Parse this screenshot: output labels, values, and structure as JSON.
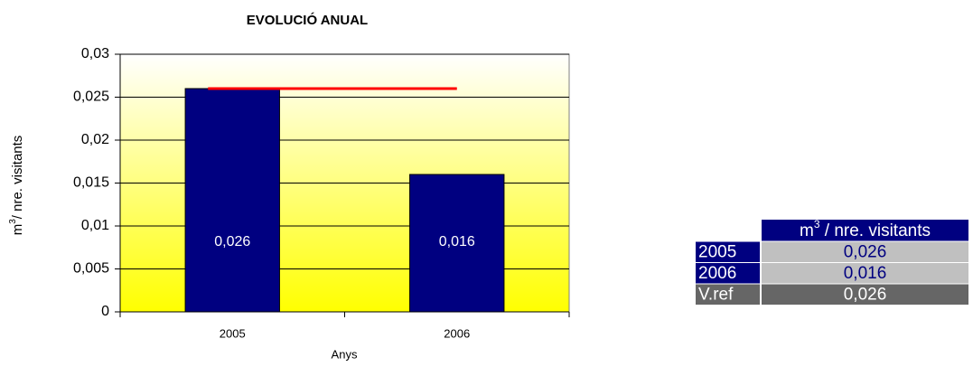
{
  "chart_data": {
    "type": "bar",
    "title": "EVOLUCIÓ ANUAL",
    "ylabel": [
      "m",
      "3",
      "/ nre. visitants"
    ],
    "xlabel": "Anys",
    "categories": [
      "2005",
      "2006"
    ],
    "values": [
      0.026,
      0.016
    ],
    "value_labels": [
      "0,026",
      "0,016"
    ],
    "color": "#000080",
    "reference": {
      "values": [
        0.026,
        0.026
      ],
      "color": "#ff0000"
    },
    "ylim": [
      0,
      0.03
    ],
    "yticks": [
      0,
      {
        "value": 0.005,
        "label": "0,005"
      },
      {
        "value": 0.01,
        "label": "0,01"
      },
      {
        "value": 0.015,
        "label": "0,015"
      },
      {
        "value": 0.02,
        "label": "0,02"
      },
      {
        "value": 0.025,
        "label": "0,025"
      },
      {
        "value": 0.03,
        "label": "0,03"
      }
    ],
    "grid": true
  },
  "table": {
    "header": [
      "m",
      "3",
      " / nre. visitants"
    ],
    "rows": [
      [
        "2005",
        "0,026"
      ],
      [
        "2006",
        "0,016"
      ],
      [
        "V.ref",
        "0,026"
      ]
    ]
  }
}
